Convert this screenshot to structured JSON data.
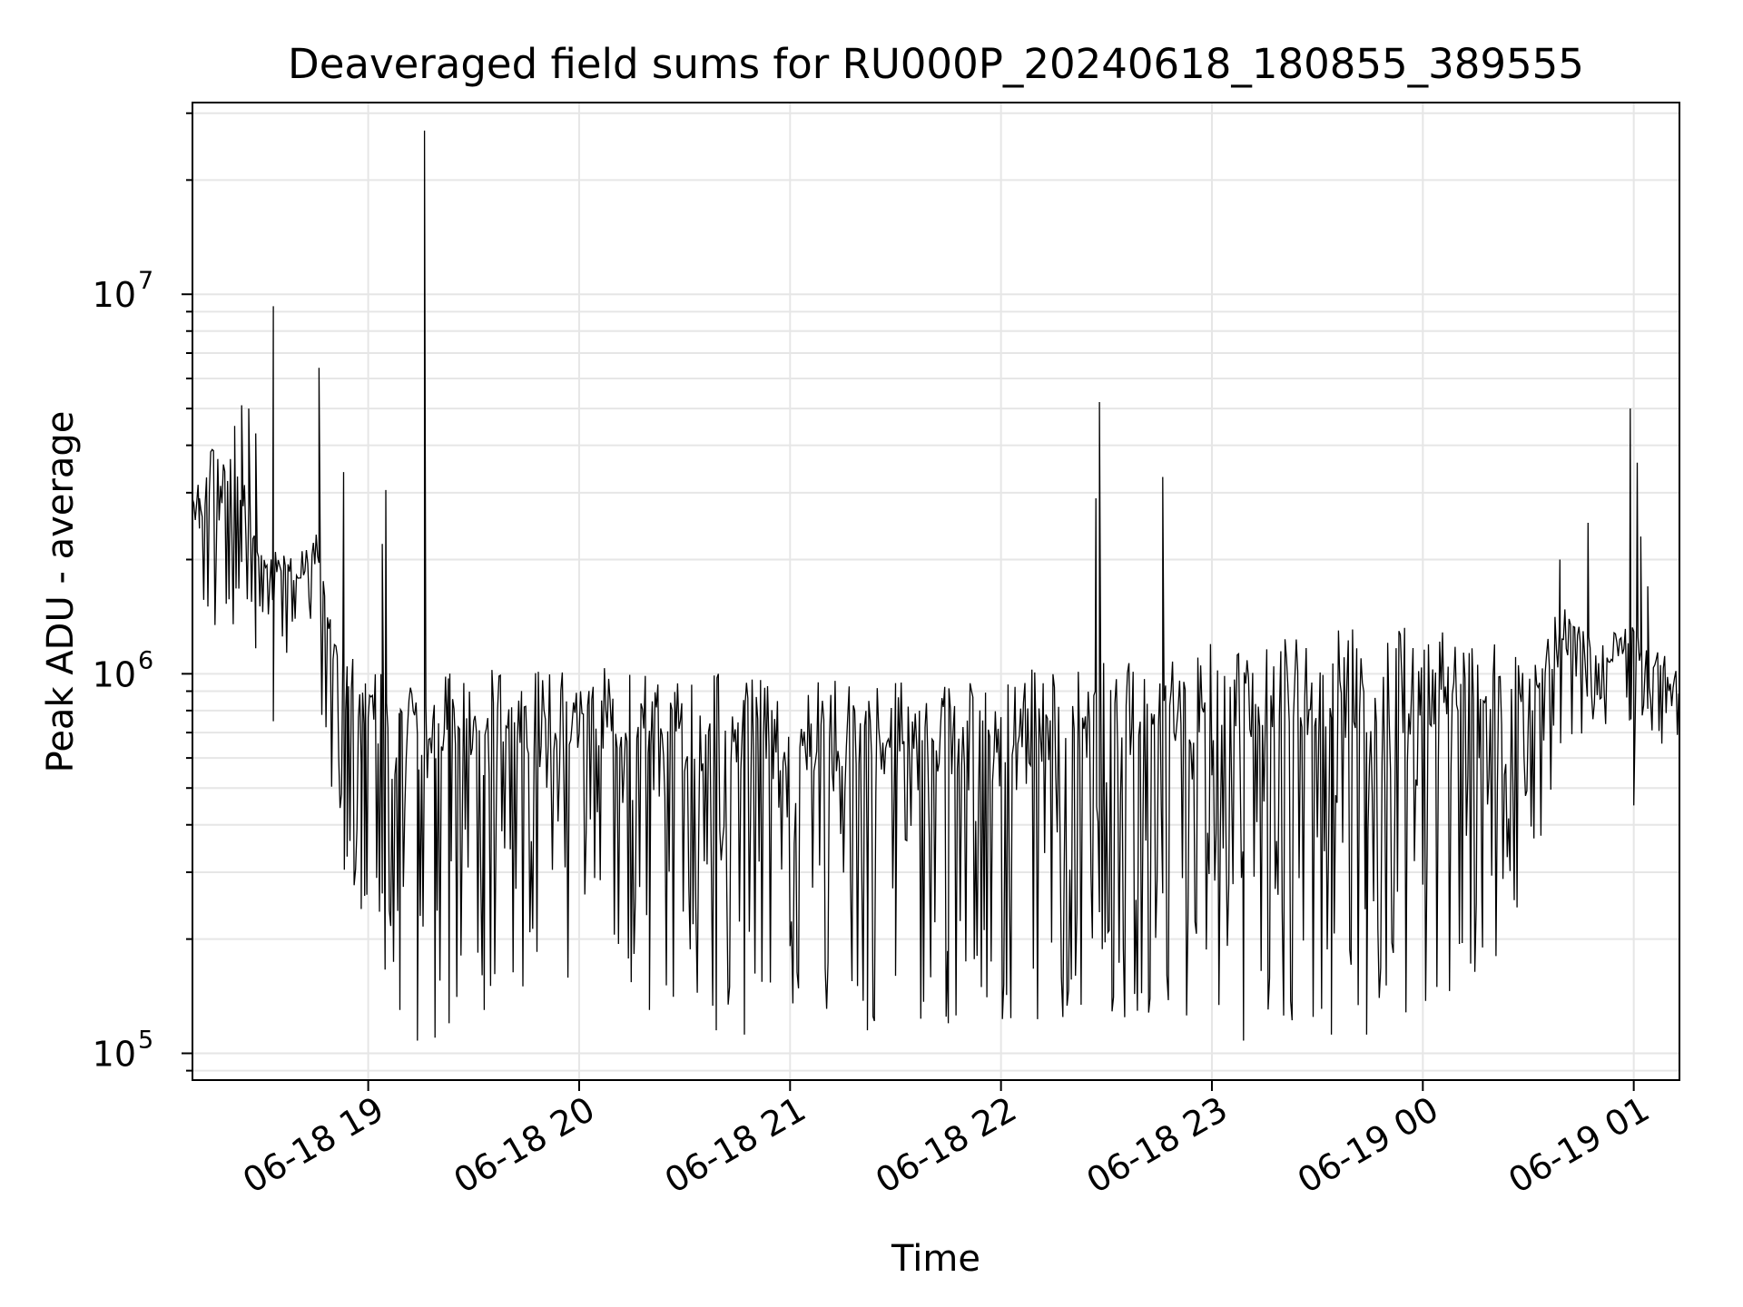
{
  "chart_data": {
    "type": "line",
    "title": "Deaveraged field sums for RU000P_20240618_180855_389555",
    "xlabel": "Time",
    "ylabel": "Peak ADU - average",
    "yscale": "log",
    "ylim": [
      85000,
      32000000
    ],
    "xlim": [
      "2024-06-18 18:10",
      "2024-06-19 01:13"
    ],
    "grid": true,
    "x_ticks": [
      {
        "value": "2024-06-18 19:00",
        "label": "06-18 19"
      },
      {
        "value": "2024-06-18 20:00",
        "label": "06-18 20"
      },
      {
        "value": "2024-06-18 21:00",
        "label": "06-18 21"
      },
      {
        "value": "2024-06-18 22:00",
        "label": "06-18 22"
      },
      {
        "value": "2024-06-18 23:00",
        "label": "06-18 23"
      },
      {
        "value": "2024-06-19 00:00",
        "label": "06-19 00"
      },
      {
        "value": "2024-06-19 01:00",
        "label": "06-19 01"
      }
    ],
    "y_ticks": [
      {
        "value": 100000,
        "base": "10",
        "exp": "5"
      },
      {
        "value": 1000000,
        "base": "10",
        "exp": "6"
      },
      {
        "value": 10000000,
        "base": "10",
        "exp": "7"
      }
    ],
    "series_color": "#000000",
    "grid_color": "#e6e6e6",
    "envelope": [
      {
        "x": "2024-06-18 18:10",
        "low": 1300000,
        "high": 2900000
      },
      {
        "x": "2024-06-18 18:20",
        "low": 1200000,
        "high": 5000000
      },
      {
        "x": "2024-06-18 18:30",
        "low": 1150000,
        "high": 2200000
      },
      {
        "x": "2024-06-18 18:40",
        "low": 1100000,
        "high": 2000000
      },
      {
        "x": "2024-06-18 18:45",
        "low": 950000,
        "high": 2500000
      },
      {
        "x": "2024-06-18 18:50",
        "low": 350000,
        "high": 1500000
      },
      {
        "x": "2024-06-18 18:55",
        "low": 260000,
        "high": 1100000
      },
      {
        "x": "2024-06-18 19:10",
        "low": 130000,
        "high": 1000000
      },
      {
        "x": "2024-06-18 20:00",
        "low": 160000,
        "high": 1050000
      },
      {
        "x": "2024-06-18 20:40",
        "low": 130000,
        "high": 1000000
      },
      {
        "x": "2024-06-18 21:30",
        "low": 120000,
        "high": 950000
      },
      {
        "x": "2024-06-18 22:00",
        "low": 120000,
        "high": 1000000
      },
      {
        "x": "2024-06-18 22:30",
        "low": 125000,
        "high": 1100000
      },
      {
        "x": "2024-06-18 23:00",
        "low": 115000,
        "high": 1200000
      },
      {
        "x": "2024-06-18 23:30",
        "low": 115000,
        "high": 1300000
      },
      {
        "x": "2024-06-19 00:00",
        "low": 120000,
        "high": 1350000
      },
      {
        "x": "2024-06-19 00:20",
        "low": 170000,
        "high": 1200000
      },
      {
        "x": "2024-06-19 00:30",
        "low": 280000,
        "high": 1100000
      },
      {
        "x": "2024-06-19 00:40",
        "low": 500000,
        "high": 1600000
      },
      {
        "x": "2024-06-19 00:50",
        "low": 650000,
        "high": 1200000
      },
      {
        "x": "2024-06-19 01:00",
        "low": 750000,
        "high": 1400000
      },
      {
        "x": "2024-06-19 01:13",
        "low": 600000,
        "high": 1000000
      }
    ],
    "spikes": [
      {
        "x": "2024-06-18 18:12",
        "y": 2900000
      },
      {
        "x": "2024-06-18 18:22",
        "y": 4500000
      },
      {
        "x": "2024-06-18 18:24",
        "y": 5100000
      },
      {
        "x": "2024-06-18 18:26",
        "y": 5000000
      },
      {
        "x": "2024-06-18 18:28",
        "y": 4300000
      },
      {
        "x": "2024-06-18 18:33",
        "y": 9300000
      },
      {
        "x": "2024-06-18 18:33",
        "y": 750000
      },
      {
        "x": "2024-06-18 18:46",
        "y": 6400000
      },
      {
        "x": "2024-06-18 18:53",
        "y": 3400000
      },
      {
        "x": "2024-06-18 18:54",
        "y": 330000
      },
      {
        "x": "2024-06-18 18:58",
        "y": 240000
      },
      {
        "x": "2024-06-18 18:59",
        "y": 260000
      },
      {
        "x": "2024-06-18 19:04",
        "y": 2200000
      },
      {
        "x": "2024-06-18 19:05",
        "y": 3050000
      },
      {
        "x": "2024-06-18 19:09",
        "y": 130000
      },
      {
        "x": "2024-06-18 19:14",
        "y": 108000
      },
      {
        "x": "2024-06-18 19:16",
        "y": 27000000
      },
      {
        "x": "2024-06-18 19:19",
        "y": 110000
      },
      {
        "x": "2024-06-18 19:23",
        "y": 120000
      },
      {
        "x": "2024-06-18 19:33",
        "y": 130000
      },
      {
        "x": "2024-06-18 20:20",
        "y": 130000
      },
      {
        "x": "2024-06-18 20:39",
        "y": 115000
      },
      {
        "x": "2024-06-18 20:47",
        "y": 112000
      },
      {
        "x": "2024-06-18 21:22",
        "y": 115000
      },
      {
        "x": "2024-06-18 21:30",
        "y": 160000
      },
      {
        "x": "2024-06-18 21:45",
        "y": 120000
      },
      {
        "x": "2024-06-18 22:27",
        "y": 2900000
      },
      {
        "x": "2024-06-18 22:28",
        "y": 5200000
      },
      {
        "x": "2024-06-18 22:46",
        "y": 3300000
      },
      {
        "x": "2024-06-18 23:09",
        "y": 108000
      },
      {
        "x": "2024-06-18 23:34",
        "y": 112000
      },
      {
        "x": "2024-06-18 23:44",
        "y": 112000
      },
      {
        "x": "2024-06-19 00:17",
        "y": 190000
      },
      {
        "x": "2024-06-19 00:39",
        "y": 2000000
      },
      {
        "x": "2024-06-19 00:47",
        "y": 2500000
      },
      {
        "x": "2024-06-19 00:59",
        "y": 5000000
      },
      {
        "x": "2024-06-19 01:00",
        "y": 450000
      },
      {
        "x": "2024-06-19 01:01",
        "y": 3600000
      },
      {
        "x": "2024-06-19 01:02",
        "y": 2300000
      },
      {
        "x": "2024-06-19 01:04",
        "y": 1700000
      }
    ]
  }
}
